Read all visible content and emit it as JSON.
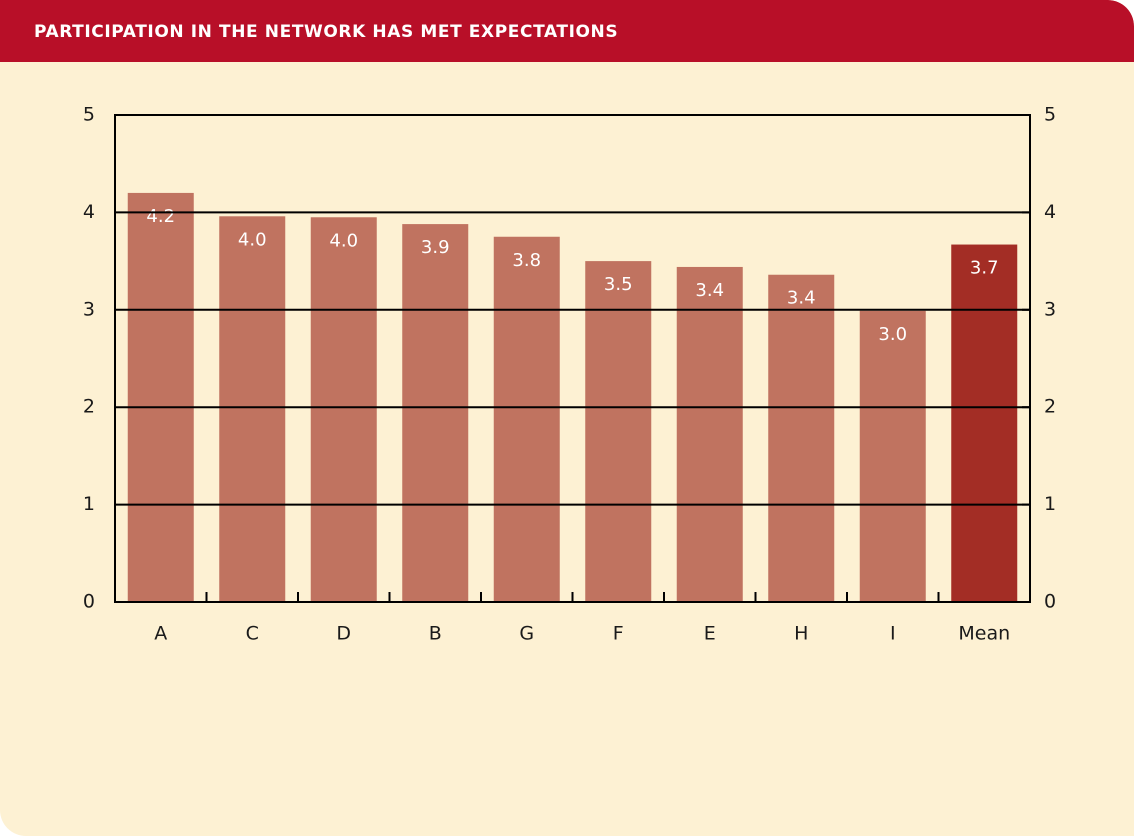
{
  "chart_data": {
    "type": "bar",
    "title": "PARTICIPATION IN THE NETWORK HAS MET EXPECTATIONS",
    "categories": [
      "A",
      "C",
      "D",
      "B",
      "G",
      "F",
      "E",
      "H",
      "I",
      "Mean"
    ],
    "values": [
      4.2,
      3.96,
      3.95,
      3.88,
      3.75,
      3.5,
      3.44,
      3.36,
      2.99,
      3.67
    ],
    "value_labels": [
      "4.2",
      "4.0",
      "4.0",
      "3.9",
      "3.8",
      "3.5",
      "3.4",
      "3.4",
      "3.0",
      "3.7"
    ],
    "colors": [
      "#c07360",
      "#c07360",
      "#c07360",
      "#c07360",
      "#c07360",
      "#c07360",
      "#c07360",
      "#c07360",
      "#c07360",
      "#a32d25"
    ],
    "ylim": [
      0,
      5
    ],
    "yticks": [
      0,
      1,
      2,
      3,
      4,
      5
    ],
    "y2lim": [
      0,
      5
    ],
    "y2ticks": [
      0,
      1,
      2,
      3,
      4,
      5
    ],
    "grid": true
  }
}
